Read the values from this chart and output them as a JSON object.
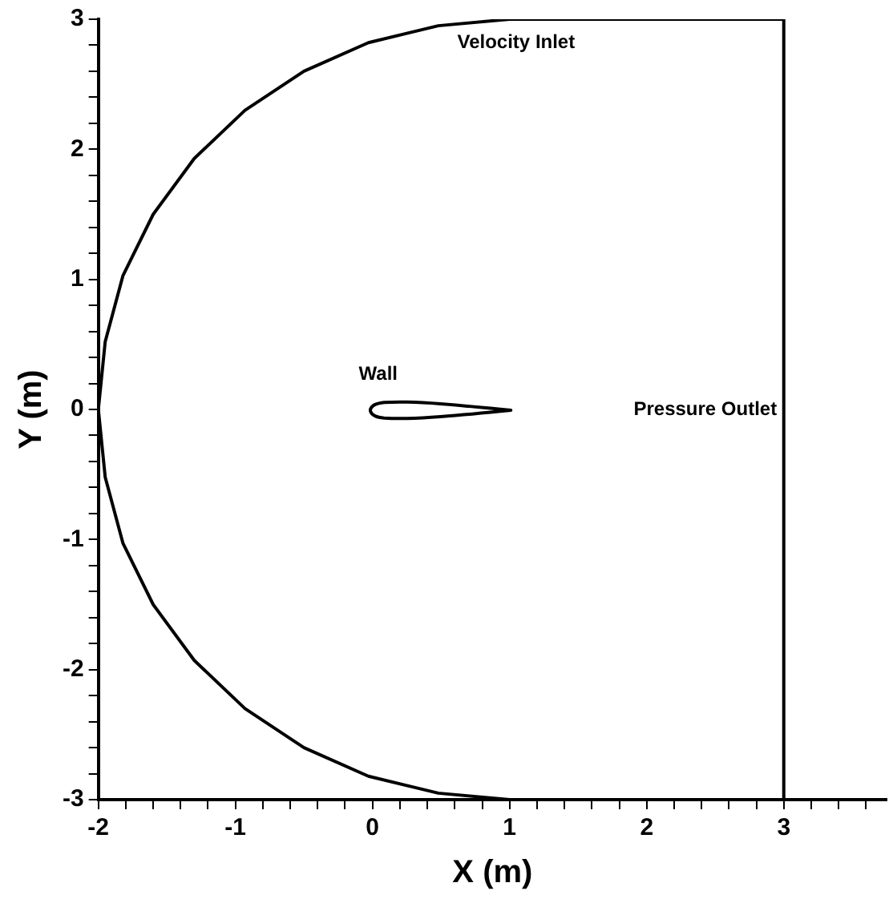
{
  "chart_data": {
    "type": "line",
    "xlabel": "X (m)",
    "ylabel": "Y (m)",
    "series": [
      {
        "color": "#000000",
        "x": [
          3,
          3,
          1,
          0.48,
          -0.03,
          -0.5,
          -0.93,
          -1.3,
          -1.6,
          -1.82,
          -1.95,
          -2,
          -1.95,
          -1.82,
          -1.6,
          -1.3,
          -0.93,
          -0.5,
          -0.03,
          0.48,
          1
        ],
        "values": [
          -3,
          3,
          3,
          2.95,
          2.82,
          2.6,
          2.3,
          1.93,
          1.5,
          1.03,
          0.52,
          0,
          -0.52,
          -1.03,
          -1.5,
          -1.93,
          -2.3,
          -2.6,
          -2.82,
          -2.95,
          -3
        ]
      }
    ],
    "xlim": [
      -2,
      3.75
    ],
    "ylim": [
      -3,
      3
    ],
    "xticks": [
      -2,
      {
        "value": -1.8,
        "label": null
      },
      {
        "value": -1.6,
        "label": null
      },
      {
        "value": -1.4,
        "label": null
      },
      {
        "value": -1.2,
        "label": null
      },
      -1,
      {
        "value": -0.8,
        "label": null
      },
      {
        "value": -0.6,
        "label": null
      },
      {
        "value": -0.4,
        "label": null
      },
      {
        "value": -0.2,
        "label": null
      },
      0,
      {
        "value": 0.2,
        "label": null
      },
      {
        "value": 0.4,
        "label": null
      },
      {
        "value": 0.6,
        "label": null
      },
      {
        "value": 0.8,
        "label": null
      },
      1,
      {
        "value": 1.2,
        "label": null
      },
      {
        "value": 1.4,
        "label": null
      },
      {
        "value": 1.6,
        "label": null
      },
      {
        "value": 1.8,
        "label": null
      },
      2,
      {
        "value": 2.2,
        "label": null
      },
      {
        "value": 2.4,
        "label": null
      },
      {
        "value": 2.6,
        "label": null
      },
      {
        "value": 2.8,
        "label": null
      },
      3,
      {
        "value": 3.2,
        "label": null
      },
      {
        "value": 3.4,
        "label": null
      },
      {
        "value": 3.6,
        "label": null
      }
    ],
    "yticks": [
      -3,
      {
        "value": -2.8,
        "label": null
      },
      {
        "value": -2.6,
        "label": null
      },
      {
        "value": -2.4,
        "label": null
      },
      {
        "value": -2.2,
        "label": null
      },
      -2,
      {
        "value": -1.8,
        "label": null
      },
      {
        "value": -1.6,
        "label": null
      },
      {
        "value": -1.4,
        "label": null
      },
      {
        "value": -1.2,
        "label": null
      },
      -1,
      {
        "value": -0.8,
        "label": null
      },
      {
        "value": -0.6,
        "label": null
      },
      {
        "value": -0.4,
        "label": null
      },
      {
        "value": -0.2,
        "label": null
      },
      0,
      {
        "value": 0.2,
        "label": null
      },
      {
        "value": 0.4,
        "label": null
      },
      {
        "value": 0.6,
        "label": null
      },
      {
        "value": 0.8,
        "label": null
      },
      1,
      {
        "value": 1.2,
        "label": null
      },
      {
        "value": 1.4,
        "label": null
      },
      {
        "value": 1.6,
        "label": null
      },
      {
        "value": 1.8,
        "label": null
      },
      2,
      {
        "value": 2.2,
        "label": null
      },
      {
        "value": 2.4,
        "label": null
      },
      {
        "value": 2.6,
        "label": null
      },
      {
        "value": 2.8,
        "label": null
      },
      3
    ],
    "annotations": [
      "Velocity Inlet",
      "Wall",
      "Pressure Outlet"
    ],
    "grid": false,
    "legend": false,
    "marker": "none",
    "line_style": "solid"
  }
}
